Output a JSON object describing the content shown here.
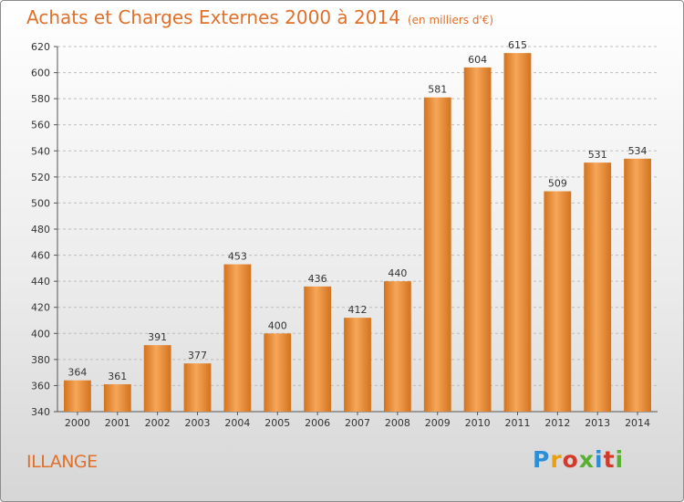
{
  "header": {
    "title": "Achats et Charges Externes 2000 à 2014",
    "subtitle": "(en milliers d'€)"
  },
  "footer": {
    "city": "ILLANGE",
    "logo": "Proxiti"
  },
  "colors": {
    "bar_light": "#f7a659",
    "bar_dark": "#d2731f",
    "title": "#e0702a",
    "grid": "#bdbdbd"
  },
  "chart_data": {
    "type": "bar",
    "title": "Achats et Charges Externes 2000 à 2014",
    "subtitle": "(en milliers d'€)",
    "xlabel": "",
    "ylabel": "",
    "categories": [
      "2000",
      "2001",
      "2002",
      "2003",
      "2004",
      "2005",
      "2006",
      "2007",
      "2008",
      "2009",
      "2010",
      "2011",
      "2012",
      "2013",
      "2014"
    ],
    "values": [
      364,
      361,
      391,
      377,
      453,
      400,
      436,
      412,
      440,
      581,
      604,
      615,
      509,
      531,
      534
    ],
    "ylim": [
      340,
      620
    ],
    "yticks": [
      340,
      360,
      380,
      400,
      420,
      440,
      460,
      480,
      500,
      520,
      540,
      560,
      580,
      600,
      620
    ],
    "grid": true,
    "legend": "none"
  }
}
